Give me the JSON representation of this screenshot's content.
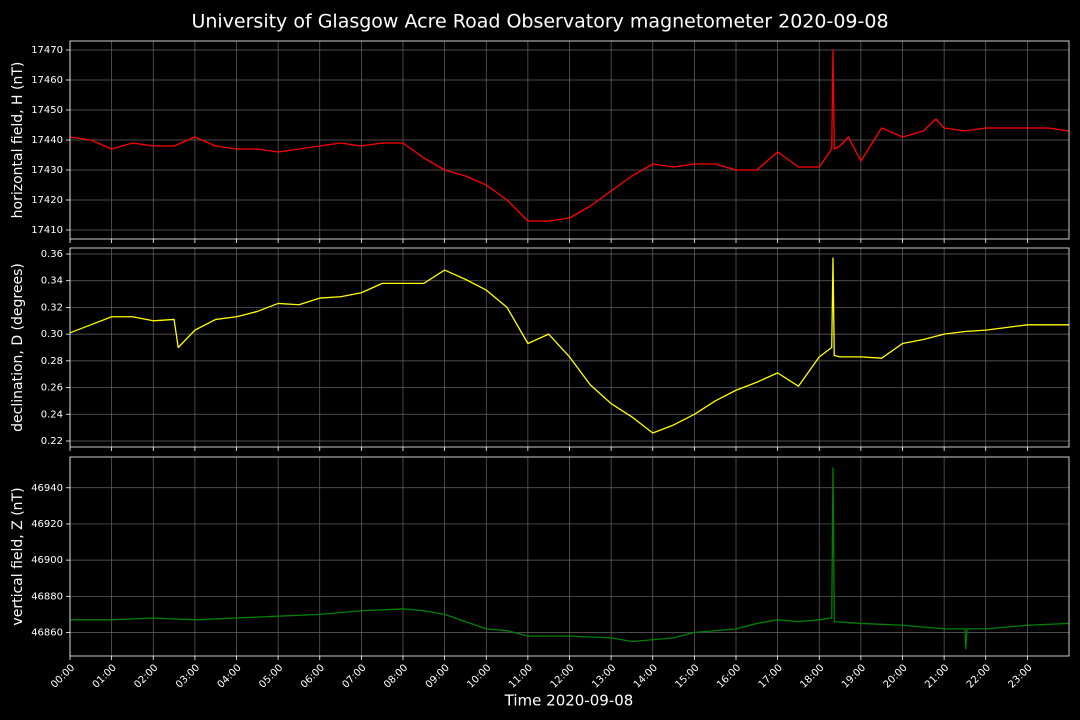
{
  "title": "University of Glasgow Acre Road Observatory magnetometer 2020-09-08",
  "x_axis": {
    "label": "Time 2020-09-08",
    "lim": [
      0,
      24
    ],
    "ticks": [
      {
        "value": 0,
        "label": "00:00"
      },
      {
        "value": 1,
        "label": "01:00"
      },
      {
        "value": 2,
        "label": "02:00"
      },
      {
        "value": 3,
        "label": "03:00"
      },
      {
        "value": 4,
        "label": "04:00"
      },
      {
        "value": 5,
        "label": "05:00"
      },
      {
        "value": 6,
        "label": "06:00"
      },
      {
        "value": 7,
        "label": "07:00"
      },
      {
        "value": 8,
        "label": "08:00"
      },
      {
        "value": 9,
        "label": "09:00"
      },
      {
        "value": 10,
        "label": "10:00"
      },
      {
        "value": 11,
        "label": "11:00"
      },
      {
        "value": 12,
        "label": "12:00"
      },
      {
        "value": 13,
        "label": "13:00"
      },
      {
        "value": 14,
        "label": "14:00"
      },
      {
        "value": 15,
        "label": "15:00"
      },
      {
        "value": 16,
        "label": "16:00"
      },
      {
        "value": 17,
        "label": "17:00"
      },
      {
        "value": 18,
        "label": "18:00"
      },
      {
        "value": 19,
        "label": "19:00"
      },
      {
        "value": 20,
        "label": "20:00"
      },
      {
        "value": 21,
        "label": "21:00"
      },
      {
        "value": 22,
        "label": "22:00"
      },
      {
        "value": 23,
        "label": "23:00"
      }
    ]
  },
  "chart_data": [
    {
      "type": "line",
      "ylabel": "horizontal field, H (nT)",
      "color": "#ff0000",
      "grid": true,
      "ylim": [
        17407,
        17473
      ],
      "yticks": [
        17410,
        17420,
        17430,
        17440,
        17450,
        17460,
        17470
      ],
      "x": [
        0,
        0.5,
        1,
        1.5,
        2,
        2.5,
        3,
        3.5,
        4,
        4.5,
        5,
        5.5,
        6,
        6.5,
        7,
        7.5,
        8,
        8.5,
        9,
        9.5,
        10,
        10.5,
        11,
        11.5,
        12,
        12.5,
        13,
        13.5,
        14,
        14.5,
        15,
        15.5,
        16,
        16.5,
        17,
        17.5,
        18,
        18.3,
        18.33,
        18.36,
        18.5,
        18.7,
        19,
        19.5,
        20,
        20.5,
        20.8,
        21,
        21.5,
        22,
        22.5,
        23,
        23.5,
        24
      ],
      "values": [
        17441,
        17440,
        17437,
        17439,
        17438,
        17438,
        17441,
        17438,
        17437,
        17437,
        17436,
        17437,
        17438,
        17439,
        17438,
        17439,
        17439,
        17434,
        17430,
        17428,
        17425,
        17420,
        17413,
        17413,
        17414,
        17418,
        17423,
        17428,
        17432,
        17431,
        17432,
        17432,
        17430,
        17430,
        17436,
        17431,
        17431,
        17437,
        17470,
        17437,
        17438,
        17441,
        17433,
        17444,
        17441,
        17443,
        17447,
        17444,
        17443,
        17444,
        17444,
        17444,
        17444,
        17443
      ]
    },
    {
      "type": "line",
      "ylabel": "declination, D (degrees)",
      "color": "#ffff00",
      "grid": true,
      "ylim": [
        0.2155,
        0.3645
      ],
      "yticks": [
        0.22,
        0.24,
        0.26,
        0.28,
        {
          "value": 0.3,
          "label": "0.30"
        },
        0.32,
        0.34,
        0.36
      ],
      "x": [
        0,
        0.5,
        1,
        1.5,
        2,
        2.5,
        2.6,
        3,
        3.5,
        4,
        4.5,
        5,
        5.5,
        6,
        6.5,
        7,
        7.5,
        8,
        8.5,
        9,
        9.5,
        10,
        10.5,
        11,
        11.5,
        12,
        12.5,
        13,
        13.5,
        14,
        14.5,
        15,
        15.5,
        16,
        16.5,
        17,
        17.5,
        18,
        18.3,
        18.33,
        18.36,
        18.5,
        19,
        19.5,
        20,
        20.5,
        21,
        21.5,
        22,
        22.5,
        23,
        23.5,
        24
      ],
      "values": [
        0.301,
        0.307,
        0.313,
        0.313,
        0.31,
        0.311,
        0.29,
        0.303,
        0.311,
        0.313,
        0.317,
        0.323,
        0.322,
        0.327,
        0.328,
        0.331,
        0.338,
        0.338,
        0.338,
        0.348,
        0.341,
        0.333,
        0.32,
        0.293,
        0.3,
        0.283,
        0.262,
        0.248,
        0.238,
        0.226,
        0.232,
        0.24,
        0.25,
        0.258,
        0.264,
        0.271,
        0.261,
        0.283,
        0.29,
        0.357,
        0.284,
        0.283,
        0.283,
        0.282,
        0.293,
        0.296,
        0.3,
        0.302,
        0.303,
        0.305,
        0.307,
        0.307,
        0.307
      ]
    },
    {
      "type": "line",
      "ylabel": "vertical field, Z (nT)",
      "color": "#008000",
      "grid": true,
      "ylim": [
        46847,
        46957
      ],
      "yticks": [
        46860,
        46880,
        46900,
        46920,
        46940
      ],
      "x": [
        0,
        1,
        2,
        3,
        4,
        5,
        6,
        7,
        8,
        8.5,
        9,
        9.5,
        10,
        10.5,
        11,
        11.5,
        12,
        13,
        13.5,
        14,
        14.5,
        15,
        16,
        16.5,
        17,
        17.5,
        18,
        18.3,
        18.33,
        18.36,
        19,
        20,
        21,
        21.5,
        21.52,
        21.55,
        22,
        23,
        24
      ],
      "values": [
        46867,
        46867,
        46868,
        46867,
        46868,
        46869,
        46870,
        46872,
        46873,
        46872,
        46870,
        46866,
        46862,
        46861,
        46858,
        46858,
        46858,
        46857,
        46855,
        46856,
        46857,
        46860,
        46862,
        46865,
        46867,
        46866,
        46867,
        46868,
        46951,
        46866,
        46865,
        46864,
        46862,
        46862,
        46851,
        46862,
        46862,
        46864,
        46865
      ]
    }
  ]
}
